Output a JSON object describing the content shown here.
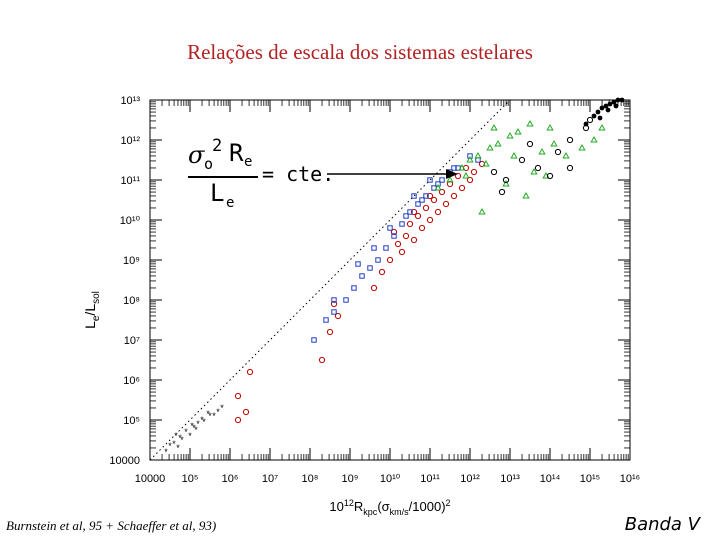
{
  "title": "Relações de escala dos sistemas estelares",
  "formula": {
    "sigma": "σ",
    "sub_o": "o",
    "sup_2": "2",
    "R": "R",
    "sub_e": "e",
    "L": "L",
    "equals": "= cte."
  },
  "citation": "Burnstein et al, 95 + Schaeffer et al, 93)",
  "band": "Banda V",
  "chart_data": {
    "type": "scatter",
    "title": "Relações de escala dos sistemas estelares",
    "xlabel": "10¹²R_kpc(σ_km/s/1000)²",
    "ylabel": "L_e/L_sol",
    "log_x": true,
    "log_y": true,
    "xlim": [
      4,
      16
    ],
    "ylim": [
      4,
      13
    ],
    "x_ticks": [
      "10000",
      "10⁵",
      "10⁶",
      "10⁷",
      "10⁸",
      "10⁹",
      "10¹⁰",
      "10¹¹",
      "10¹²",
      "10¹³",
      "10¹⁴",
      "10¹⁵",
      "10¹⁶"
    ],
    "y_ticks": [
      "10000",
      "10⁵",
      "10⁶",
      "10⁷",
      "10⁸",
      "10⁹",
      "10¹⁰",
      "10¹¹",
      "10¹²",
      "10¹³"
    ],
    "reference_line": {
      "style": "dotted",
      "slope": 1,
      "intercept": 0
    },
    "series": [
      {
        "marker": "star",
        "color": "#000000",
        "points": [
          [
            4.4,
            4.2
          ],
          [
            4.6,
            4.4
          ],
          [
            4.7,
            4.3
          ],
          [
            4.8,
            4.5
          ],
          [
            4.9,
            4.7
          ],
          [
            5.0,
            4.6
          ],
          [
            5.1,
            4.8
          ],
          [
            5.2,
            4.9
          ],
          [
            5.3,
            5.0
          ],
          [
            5.5,
            5.1
          ],
          [
            5.6,
            5.1
          ],
          [
            5.7,
            5.2
          ],
          [
            4.5,
            4.35
          ],
          [
            4.75,
            4.55
          ],
          [
            5.05,
            4.85
          ],
          [
            5.35,
            4.95
          ],
          [
            5.45,
            5.15
          ],
          [
            5.8,
            5.3
          ],
          [
            4.65,
            4.6
          ],
          [
            5.15,
            4.75
          ]
        ]
      },
      {
        "marker": "circle",
        "color": "#cc0000",
        "points": [
          [
            6.2,
            5.0
          ],
          [
            6.4,
            5.2
          ],
          [
            6.2,
            5.6
          ],
          [
            6.5,
            6.2
          ],
          [
            8.3,
            6.5
          ],
          [
            8.5,
            7.2
          ],
          [
            8.7,
            7.6
          ],
          [
            8.6,
            7.9
          ],
          [
            9.6,
            8.3
          ],
          [
            9.8,
            8.7
          ],
          [
            10.0,
            9.0
          ],
          [
            10.2,
            9.4
          ],
          [
            10.4,
            9.6
          ],
          [
            10.5,
            9.9
          ],
          [
            10.7,
            10.1
          ],
          [
            10.9,
            10.3
          ],
          [
            11.1,
            10.5
          ],
          [
            11.3,
            10.7
          ],
          [
            11.5,
            10.9
          ],
          [
            11.7,
            11.1
          ],
          [
            11.9,
            11.3
          ],
          [
            10.3,
            9.2
          ],
          [
            10.6,
            9.5
          ],
          [
            11.0,
            10.0
          ],
          [
            11.4,
            10.4
          ],
          [
            11.8,
            10.8
          ],
          [
            12.1,
            11.2
          ],
          [
            12.3,
            11.4
          ],
          [
            11.2,
            10.2
          ],
          [
            10.8,
            9.8
          ],
          [
            10.1,
            9.7
          ],
          [
            10.6,
            10.2
          ],
          [
            11.0,
            10.6
          ],
          [
            11.6,
            10.6
          ],
          [
            12.0,
            11.0
          ]
        ]
      },
      {
        "marker": "square",
        "color": "#1f3fbf",
        "points": [
          [
            8.1,
            7.0
          ],
          [
            8.4,
            7.5
          ],
          [
            8.6,
            7.7
          ],
          [
            8.9,
            8.0
          ],
          [
            9.1,
            8.3
          ],
          [
            9.3,
            8.6
          ],
          [
            9.5,
            8.8
          ],
          [
            9.7,
            9.0
          ],
          [
            9.9,
            9.3
          ],
          [
            10.1,
            9.6
          ],
          [
            10.3,
            9.9
          ],
          [
            10.5,
            10.2
          ],
          [
            10.7,
            10.4
          ],
          [
            10.9,
            10.6
          ],
          [
            11.1,
            10.8
          ],
          [
            11.3,
            11.0
          ],
          [
            11.5,
            11.2
          ],
          [
            11.7,
            11.3
          ],
          [
            9.6,
            9.3
          ],
          [
            10.0,
            9.8
          ],
          [
            10.4,
            10.1
          ],
          [
            10.8,
            10.5
          ],
          [
            11.2,
            10.9
          ],
          [
            11.6,
            11.3
          ],
          [
            11.0,
            11.0
          ],
          [
            10.6,
            10.6
          ],
          [
            12.0,
            11.6
          ],
          [
            12.2,
            11.5
          ],
          [
            8.6,
            8.0
          ],
          [
            9.2,
            8.9
          ]
        ]
      },
      {
        "marker": "triangle",
        "color": "#22aa22",
        "points": [
          [
            11.2,
            10.8
          ],
          [
            11.5,
            11.0
          ],
          [
            11.8,
            11.3
          ],
          [
            12.0,
            11.5
          ],
          [
            12.2,
            11.6
          ],
          [
            12.5,
            11.8
          ],
          [
            12.7,
            11.9
          ],
          [
            13.0,
            12.1
          ],
          [
            13.2,
            12.2
          ],
          [
            13.5,
            12.4
          ],
          [
            13.8,
            11.7
          ],
          [
            14.1,
            11.9
          ],
          [
            14.4,
            11.6
          ],
          [
            12.9,
            10.9
          ],
          [
            13.4,
            10.6
          ],
          [
            12.3,
            10.2
          ],
          [
            13.6,
            11.2
          ],
          [
            14.8,
            11.8
          ],
          [
            15.1,
            12.0
          ],
          [
            15.3,
            12.3
          ],
          [
            12.6,
            12.3
          ],
          [
            11.9,
            11.1
          ],
          [
            12.4,
            11.4
          ],
          [
            13.1,
            11.6
          ],
          [
            14.0,
            12.3
          ],
          [
            13.9,
            11.1
          ]
        ]
      },
      {
        "marker": "circle-open",
        "color": "#000000",
        "points": [
          [
            12.6,
            11.2
          ],
          [
            12.9,
            11.0
          ],
          [
            13.3,
            11.5
          ],
          [
            13.7,
            11.3
          ],
          [
            14.2,
            11.7
          ],
          [
            14.5,
            12.0
          ],
          [
            14.9,
            12.3
          ],
          [
            15.0,
            12.5
          ],
          [
            13.5,
            11.9
          ],
          [
            14.0,
            11.1
          ],
          [
            14.5,
            11.3
          ],
          [
            12.8,
            10.7
          ]
        ]
      },
      {
        "marker": "dot",
        "color": "#000000",
        "points": [
          [
            14.9,
            12.4
          ],
          [
            15.1,
            12.6
          ],
          [
            15.2,
            12.7
          ],
          [
            15.3,
            12.8
          ],
          [
            15.4,
            12.85
          ],
          [
            15.5,
            12.9
          ],
          [
            15.6,
            12.95
          ],
          [
            15.7,
            13.0
          ],
          [
            15.8,
            13.0
          ],
          [
            15.45,
            12.75
          ],
          [
            15.65,
            12.85
          ],
          [
            15.25,
            12.55
          ]
        ]
      }
    ]
  }
}
